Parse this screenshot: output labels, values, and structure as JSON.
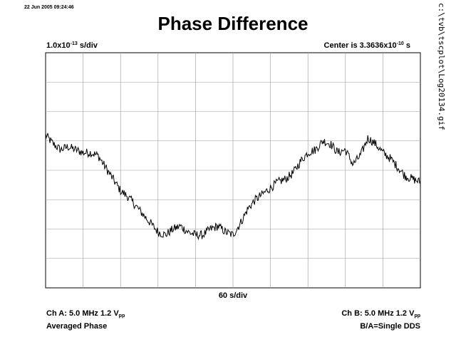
{
  "header": {
    "timestamp": "22 Jun 2005 09:24:46",
    "title": "Phase Difference",
    "scale_mantissa": "1.0x10",
    "scale_exp": "-13",
    "scale_unit": " s/div",
    "center_prefix": "Center is 3.3636x10",
    "center_exp": "-10",
    "center_unit": " s"
  },
  "side": {
    "filepath": "c:\\tvb\\tscplot\\Log20134.gif"
  },
  "footer": {
    "xlabel": "60 s/div",
    "cha_line1": "Ch A: 5.0 MHz 1.2 V",
    "cha_line1_sub": "pp",
    "cha_line2": "Averaged Phase",
    "chb_line1": "Ch B: 5.0 MHz 1.2 V",
    "chb_line1_sub": "pp",
    "chb_line2": "B/A=Single DDS"
  },
  "chart_data": {
    "type": "line",
    "title": "Phase Difference",
    "xlabel": "60 s/div",
    "ylabel": "",
    "x_divisions": 10,
    "y_divisions": 8,
    "xlim": [
      0,
      10
    ],
    "ylim": [
      -4,
      4
    ],
    "grid": true,
    "series": [
      {
        "x": [
          0,
          0.2,
          0.4,
          0.6,
          0.8,
          1.0,
          1.2,
          1.4,
          1.6,
          1.8,
          2.0,
          2.2,
          2.4,
          2.6,
          2.8,
          3.0,
          3.2,
          3.4,
          3.6,
          3.8,
          4.0,
          4.2,
          4.4,
          4.6,
          4.8,
          5.0,
          5.2,
          5.4,
          5.6,
          5.8,
          6.0,
          6.2,
          6.4,
          6.6,
          6.8,
          7.0,
          7.2,
          7.4,
          7.6,
          7.8,
          8.0,
          8.2,
          8.4,
          8.6,
          8.8,
          9.0,
          9.2,
          9.4,
          9.6,
          9.8,
          10.0
        ],
        "values": [
          1.2,
          0.9,
          0.7,
          0.8,
          0.7,
          0.6,
          0.6,
          0.5,
          0.1,
          -0.3,
          -0.7,
          -0.9,
          -1.2,
          -1.5,
          -1.8,
          -2.1,
          -2.2,
          -2.0,
          -1.9,
          -2.1,
          -2.2,
          -2.2,
          -2.0,
          -1.9,
          -2.1,
          -2.2,
          -1.8,
          -1.3,
          -1.0,
          -0.8,
          -0.6,
          -0.4,
          -0.3,
          -0.1,
          0.3,
          0.6,
          0.7,
          1.0,
          0.9,
          0.6,
          0.7,
          0.2,
          0.5,
          1.1,
          0.9,
          0.6,
          0.4,
          0.1,
          -0.2,
          -0.3,
          -0.4
        ],
        "noise_amplitude": 0.15
      }
    ]
  }
}
